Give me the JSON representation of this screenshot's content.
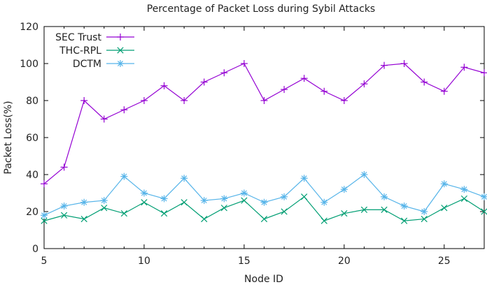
{
  "chart_data": {
    "type": "line",
    "title": "Percentage of Packet Loss during Sybil Attacks",
    "xlabel": "Node ID",
    "ylabel": "Packet Loss(%)",
    "xlim": [
      5,
      27
    ],
    "ylim": [
      0,
      120
    ],
    "xticks": [
      5,
      10,
      15,
      20,
      25
    ],
    "yticks": [
      0,
      20,
      40,
      60,
      80,
      100,
      120
    ],
    "grid": false,
    "legend_position": "top-left",
    "x": [
      5,
      6,
      7,
      8,
      9,
      10,
      11,
      12,
      13,
      14,
      15,
      16,
      17,
      18,
      19,
      20,
      21,
      22,
      23,
      24,
      25,
      26,
      27
    ],
    "series": [
      {
        "name": "SEC Trust",
        "color": "#9400d3",
        "marker": "plus",
        "values": [
          35,
          44,
          80,
          70,
          75,
          80,
          88,
          80,
          90,
          95,
          100,
          80,
          86,
          92,
          85,
          80,
          89,
          99,
          100,
          90,
          85,
          98,
          95
        ]
      },
      {
        "name": "THC-RPL",
        "color": "#009e73",
        "marker": "cross",
        "values": [
          15,
          18,
          16,
          22,
          19,
          25,
          19,
          25,
          16,
          22,
          26,
          16,
          20,
          28,
          15,
          19,
          21,
          21,
          15,
          16,
          22,
          27,
          20
        ]
      },
      {
        "name": "DCTM",
        "color": "#56b4e9",
        "marker": "star",
        "values": [
          18,
          23,
          25,
          26,
          39,
          30,
          27,
          38,
          26,
          27,
          30,
          25,
          28,
          38,
          25,
          32,
          40,
          28,
          23,
          20,
          35,
          32,
          28
        ]
      }
    ]
  }
}
